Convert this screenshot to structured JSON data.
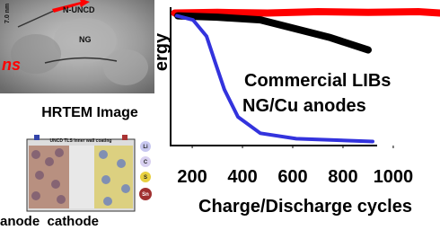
{
  "chart_data": {
    "type": "line",
    "y_label": "ergy",
    "x_label": "Charge/Discharge cycles",
    "xlim": [
      114,
      1186
    ],
    "xticks": [
      200,
      400,
      600,
      800,
      1000
    ],
    "ylim": [
      0,
      100
    ],
    "annotations": [
      "Commercial LIBs",
      "NG/Cu anodes"
    ],
    "series": [
      {
        "color": "#ff0000",
        "x": [
          130,
          300,
          500,
          700,
          900,
          1100,
          1186
        ],
        "values": [
          97,
          97.5,
          97,
          98,
          97.5,
          98,
          97
        ]
      },
      {
        "color": "#000000",
        "x": [
          143,
          300,
          471,
          600,
          750,
          900
        ],
        "values": [
          95,
          94,
          92,
          86,
          79,
          70
        ]
      },
      {
        "color": "#3333dd",
        "x": [
          139,
          203,
          257,
          293,
          328,
          382,
          471,
          614,
          918
        ],
        "values": [
          95,
          92,
          80,
          60,
          41,
          21,
          9,
          5,
          3
        ]
      }
    ]
  },
  "left_panel": {
    "image_labels": [
      "N-UNCD",
      "NG",
      "7.0 nm"
    ],
    "side_text": "ns",
    "image_caption": "HRTEM Image",
    "diagram_title": "UNCD TLS inner wall coating",
    "diagram_legend": [
      "Li",
      "C",
      "S",
      "Sn"
    ],
    "diagram_caption": "anode  cathode"
  }
}
